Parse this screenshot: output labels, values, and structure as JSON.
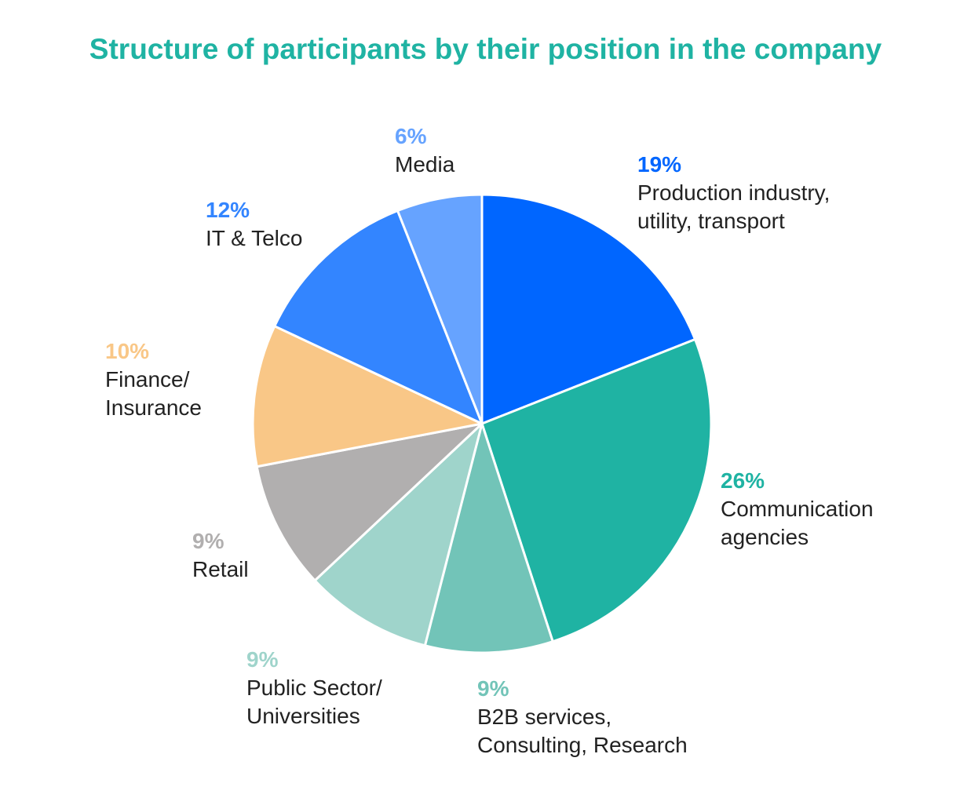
{
  "chart_data": {
    "type": "pie",
    "title": "Structure of participants by their position in the company",
    "slices": [
      {
        "label": "Production industry,\nutility, transport",
        "percent_label": "19%",
        "value": 19,
        "color": "#0066ff"
      },
      {
        "label": "Communication\nagencies",
        "percent_label": "26%",
        "value": 26,
        "color": "#1fb3a3"
      },
      {
        "label": "B2B services,\nConsulting, Research",
        "percent_label": "9%",
        "value": 9,
        "color": "#72c4b8"
      },
      {
        "label": "Public Sector/\nUniversities",
        "percent_label": "9%",
        "value": 9,
        "color": "#9fd4cb"
      },
      {
        "label": "Retail",
        "percent_label": "9%",
        "value": 9,
        "color": "#b1afaf"
      },
      {
        "label": "Finance/\nInsurance",
        "percent_label": "10%",
        "value": 10,
        "color": "#f9c787"
      },
      {
        "label": "IT & Telco",
        "percent_label": "12%",
        "value": 12,
        "color": "#3385ff"
      },
      {
        "label": "Media",
        "percent_label": "6%",
        "value": 6,
        "color": "#66a3ff"
      }
    ],
    "start_angle_deg": 0,
    "direction": "clockwise",
    "legend": "none"
  }
}
